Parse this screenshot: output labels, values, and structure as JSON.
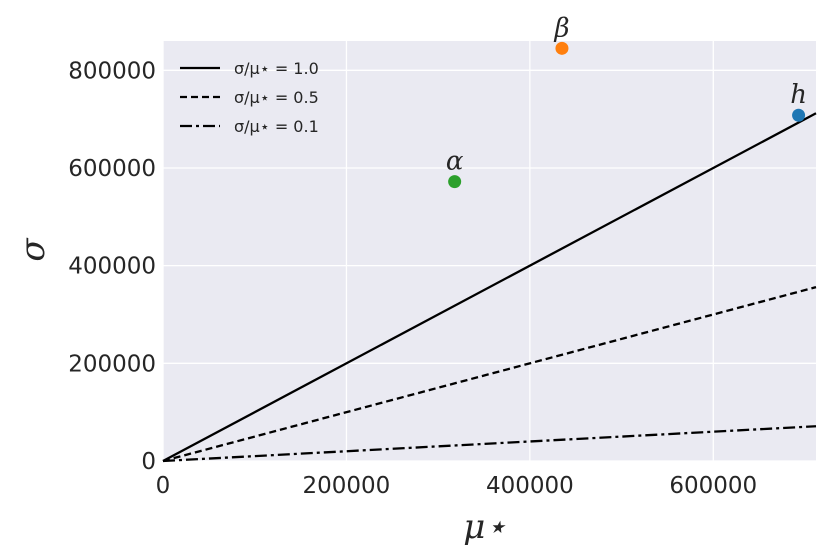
{
  "chart_data": {
    "type": "scatter",
    "xlabel": "μ⋆",
    "ylabel": "σ",
    "xlim": [
      0,
      712000
    ],
    "ylim": [
      0,
      860000
    ],
    "xticks": [
      "0",
      "200000",
      "400000",
      "600000"
    ],
    "yticks": [
      "0",
      "200000",
      "400000",
      "600000",
      "800000"
    ],
    "grid": true,
    "legend_position": "top-left",
    "lines": [
      {
        "name": "σ/μ⋆ = 1.0",
        "slope": 1.0,
        "style": "solid"
      },
      {
        "name": "σ/μ⋆ = 0.5",
        "slope": 0.5,
        "style": "dashed"
      },
      {
        "name": "σ/μ⋆ = 0.1",
        "slope": 0.1,
        "style": "dashdot"
      }
    ],
    "points": [
      {
        "label": "α",
        "x": 318000,
        "y": 572000,
        "color": "#2ca02c"
      },
      {
        "label": "β",
        "x": 435000,
        "y": 845000,
        "color": "#ff7f0e"
      },
      {
        "label": "h",
        "x": 693000,
        "y": 708000,
        "color": "#1f77b4"
      }
    ],
    "colors": {
      "plot_background": "#eaeaf2",
      "grid": "#ffffff",
      "lines": "#000000"
    }
  }
}
